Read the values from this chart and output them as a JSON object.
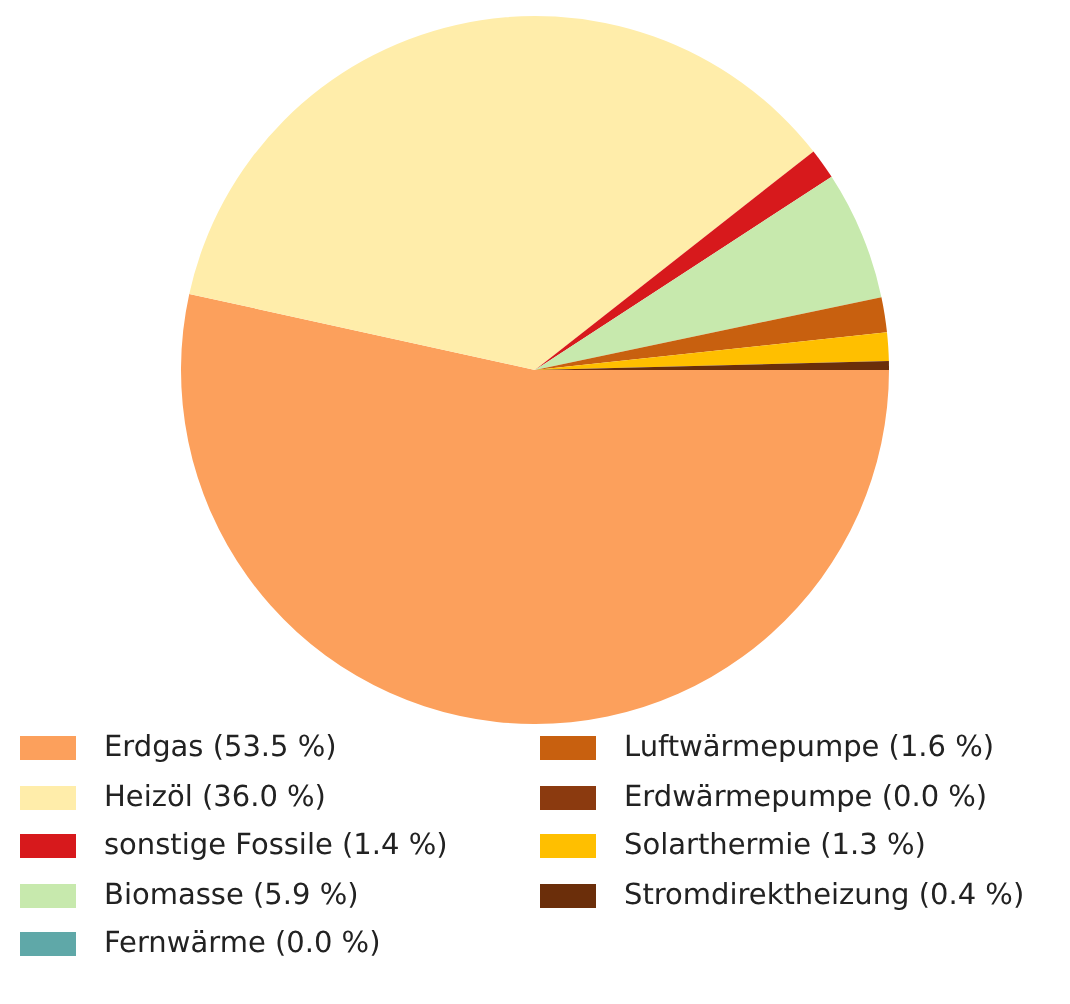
{
  "chart_data": {
    "type": "pie",
    "categories": [
      "Erdgas (53.5 %)",
      "Heizöl (36.0 %)",
      "sonstige Fossile (1.4 %)",
      "Biomasse (5.9 %)",
      "Fernwärme (0.0 %)",
      "Luftwärmepumpe (1.6 %)",
      "Erdwärmepumpe (0.0 %)",
      "Solarthermie (1.3 %)",
      "Stromdirektheizung (0.4 %)"
    ],
    "values": [
      53.5,
      36.0,
      1.4,
      5.9,
      0.0,
      1.6,
      0.0,
      1.3,
      0.4
    ],
    "colors": [
      "#fca05c",
      "#ffedaa",
      "#d7191c",
      "#c7e9ad",
      "#5fa8a8",
      "#c8600f",
      "#8b3a0f",
      "#ffbf00",
      "#6b2e0a"
    ],
    "legend": "bottom"
  }
}
